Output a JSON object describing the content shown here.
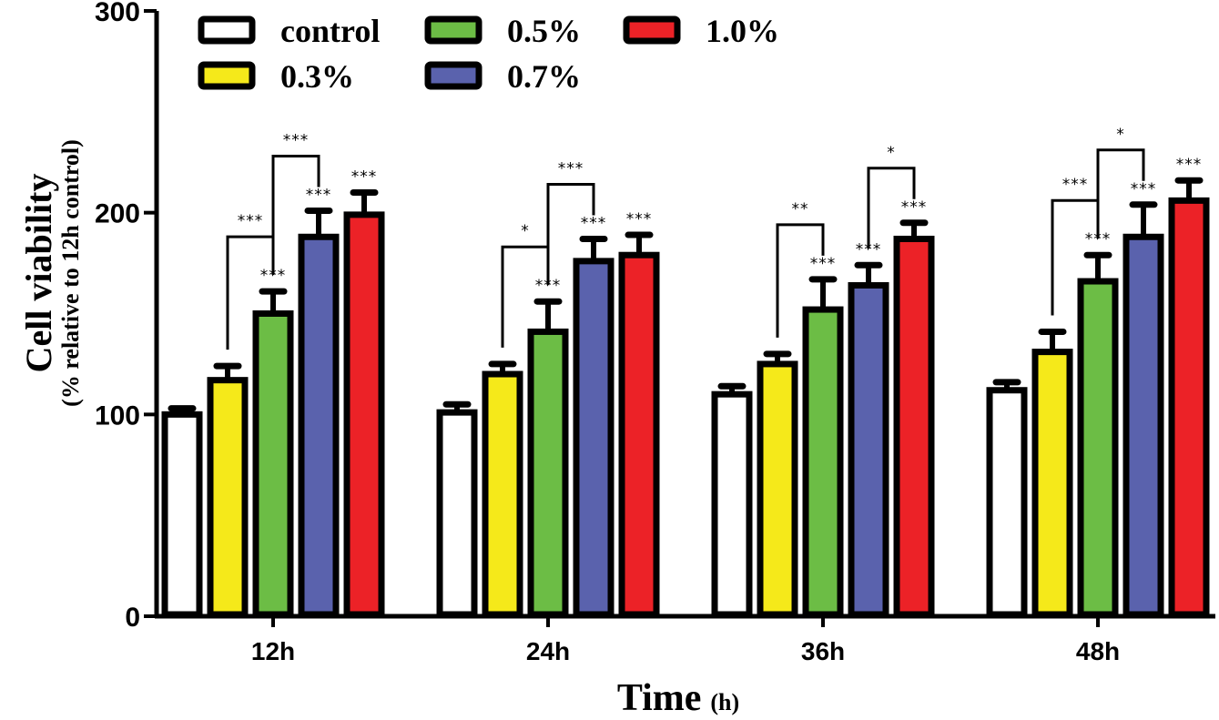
{
  "chart_data": {
    "type": "bar",
    "title": "",
    "xlabel": "Time",
    "xlabel_unit": "(h)",
    "ylabel": "Cell viability",
    "ylabel_sub": "(% relative to 12h control)",
    "ylim": [
      0,
      300
    ],
    "yticks": [
      0,
      100,
      200,
      300
    ],
    "grid": false,
    "legend_position": "top-left",
    "categories": [
      "12h",
      "24h",
      "36h",
      "48h"
    ],
    "series": [
      {
        "name": "control",
        "color": "#ffffff",
        "values": [
          100,
          101,
          110,
          112
        ],
        "errors": [
          3,
          4,
          4,
          4
        ]
      },
      {
        "name": "0.3%",
        "color": "#f5e91a",
        "values": [
          117,
          120,
          125,
          131
        ],
        "errors": [
          7,
          5,
          5,
          10
        ]
      },
      {
        "name": "0.5%",
        "color": "#6cbd45",
        "values": [
          150,
          141,
          152,
          166
        ],
        "errors": [
          11,
          15,
          15,
          13
        ]
      },
      {
        "name": "0.7%",
        "color": "#5a62ad",
        "values": [
          188,
          176,
          164,
          188
        ],
        "errors": [
          13,
          11,
          10,
          16
        ]
      },
      {
        "name": "1.0%",
        "color": "#ec2227",
        "values": [
          199,
          179,
          187,
          206
        ],
        "errors": [
          11,
          10,
          8,
          10
        ]
      }
    ],
    "bar_annotations": [
      [
        "",
        "",
        "***",
        "***",
        "***"
      ],
      [
        "",
        "",
        "***",
        "***",
        "***"
      ],
      [
        "",
        "",
        "***",
        "***",
        "***"
      ],
      [
        "",
        "",
        "***",
        "***",
        "***"
      ]
    ],
    "comparisons": [
      [
        {
          "from": 1,
          "to": 2,
          "label": "***"
        },
        {
          "from": 2,
          "to": 3,
          "label": "***"
        }
      ],
      [
        {
          "from": 1,
          "to": 2,
          "label": "*"
        },
        {
          "from": 2,
          "to": 3,
          "label": "***"
        }
      ],
      [
        {
          "from": 1,
          "to": 2,
          "label": "**"
        },
        {
          "from": 3,
          "to": 4,
          "label": "*"
        }
      ],
      [
        {
          "from": 1,
          "to": 2,
          "label": "***"
        },
        {
          "from": 2,
          "to": 3,
          "label": "*"
        }
      ]
    ]
  }
}
